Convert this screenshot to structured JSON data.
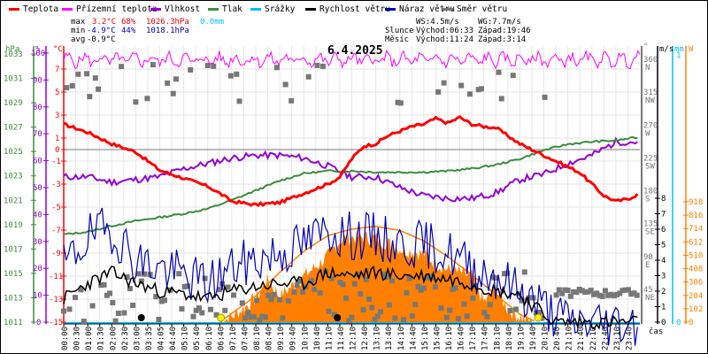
{
  "legend": [
    {
      "label": "Teplota",
      "color": "#ff0000"
    },
    {
      "label": "Přízemní teplota",
      "color": "#ff00ff"
    },
    {
      "label": "Vlhkost",
      "color": "#9400d3"
    },
    {
      "label": "Tlak",
      "color": "#3c8c3c"
    },
    {
      "label": "Srážky",
      "color": "#00bfff"
    },
    {
      "label": "Rychlost větru",
      "color": "#000000"
    },
    {
      "label": "Náraz větru",
      "color": "#0000b4"
    },
    {
      "label": "Směr větru",
      "color": "#777777"
    }
  ],
  "stats": {
    "max_label": "max",
    "max_temp": "3.2°C",
    "max_hum": "68%",
    "max_press": "1026.3hPa",
    "max_rain": "0.0mm",
    "min_label": "min",
    "min_temp": "-4.9°C",
    "min_hum": "44%",
    "min_press": "1018.1hPa",
    "avg_label": "avg",
    "avg_temp": "-0.9°C"
  },
  "wind_info": {
    "ws": "WS:4.5m/s",
    "wg": "WG:7.7m/s",
    "sun_label": "Slunce",
    "sunrise": "Východ:06:33",
    "sunset": "Západ:19:46",
    "moon_label": "Měsíc",
    "moonrise": "Východ:11:24",
    "moonset": "Západ:3:14"
  },
  "chart_data": {
    "type": "line",
    "title": "6.4.2025",
    "xlabel": "čas",
    "x_ticks": [
      "00:00",
      "00:30",
      "01:00",
      "01:30",
      "02:00",
      "02:30",
      "03:00",
      "03:35",
      "04:05",
      "04:40",
      "05:10",
      "05:40",
      "06:10",
      "06:40",
      "07:10",
      "07:40",
      "08:10",
      "08:40",
      "09:10",
      "09:40",
      "10:10",
      "10:40",
      "11:10",
      "11:40",
      "12:10",
      "12:40",
      "13:10",
      "13:40",
      "14:10",
      "14:40",
      "15:10",
      "15:40",
      "16:10",
      "16:40",
      "17:10",
      "17:40",
      "18:10",
      "18:40",
      "19:10",
      "19:40",
      "20:10",
      "20:40",
      "21:10",
      "21:40",
      "22:10",
      "22:40",
      "23:10",
      "23:40"
    ],
    "axes": {
      "pressure": {
        "unit": "hPa",
        "range": [
          1011,
          1033
        ],
        "ticks": [
          "1033",
          "1031",
          "1029",
          "1027",
          "1025",
          "1023",
          "1021",
          "1019",
          "1017",
          "1015",
          "1013",
          "1011"
        ]
      },
      "humidity": {
        "unit": "%",
        "range": [
          0,
          100
        ],
        "ticks": [
          "100",
          "90",
          "80",
          "70",
          "60",
          "50",
          "40",
          "30",
          "20",
          "10",
          "0"
        ]
      },
      "temperature": {
        "unit": "°C",
        "range": [
          -15,
          9
        ],
        "ticks": [
          "7",
          "5",
          "3",
          "1",
          "0",
          "-1",
          "-3",
          "-5",
          "-7",
          "-9",
          "-11",
          "-13",
          "-15"
        ]
      },
      "direction": {
        "unit": "°",
        "range": [
          0,
          360
        ],
        "ticks": [
          {
            "v": "360",
            "d": "N"
          },
          {
            "v": "315",
            "d": "NW"
          },
          {
            "v": "270",
            "d": "W"
          },
          {
            "v": "225",
            "d": "SW"
          },
          {
            "v": "180",
            "d": "S"
          },
          {
            "v": "135",
            "d": "SE"
          },
          {
            "v": "90",
            "d": "E"
          },
          {
            "v": "45",
            "d": "NE"
          }
        ]
      },
      "wind": {
        "unit": "m/s",
        "range": [
          0,
          8
        ],
        "ticks": [
          "8",
          "7",
          "6",
          "5",
          "4",
          "3",
          "2",
          "1",
          "0"
        ]
      },
      "rain": {
        "unit": "mm",
        "ticks": [
          "1",
          "0"
        ]
      },
      "solar": {
        "unit": "W",
        "range": [
          0,
          918
        ],
        "ticks": [
          "918",
          "816",
          "714",
          "612",
          "510",
          "408",
          "306",
          "204",
          "102",
          "0"
        ]
      }
    },
    "series": [
      {
        "name": "Teplota",
        "axis": "temperature",
        "hours": [
          0,
          1,
          2,
          3,
          4,
          5,
          6,
          6.5,
          7,
          8,
          9,
          10,
          10.5,
          11,
          11.5,
          12,
          12.5,
          13,
          13.5,
          14,
          14.5,
          15,
          15.5,
          16,
          16.5,
          17,
          17.5,
          18,
          18.5,
          19,
          19.5,
          20,
          20.5,
          21,
          21.5,
          22,
          22.5,
          23,
          23.5,
          24
        ],
        "values": [
          2.2,
          1.5,
          0.5,
          -0.2,
          -1.8,
          -2.5,
          -3.2,
          -3.8,
          -4.5,
          -4.8,
          -4.6,
          -3.8,
          -3.4,
          -3.0,
          -2.4,
          -0.8,
          0.3,
          0.5,
          1.2,
          1.6,
          2.0,
          2.2,
          2.7,
          2.3,
          2.8,
          2.2,
          2.0,
          1.9,
          1.2,
          0.5,
          0,
          -0.5,
          -1.0,
          -1.5,
          -2.0,
          -3.0,
          -4.0,
          -4.5,
          -4.3,
          -3.8
        ]
      },
      {
        "name": "Přízemní teplota",
        "axis": "temperature",
        "approx_constant": 7.8,
        "range": [
          7.2,
          8.4
        ]
      },
      {
        "name": "Vlhkost",
        "axis": "humidity",
        "hours": [
          0,
          1,
          2,
          3,
          4,
          5,
          6,
          7,
          8,
          9,
          10,
          11,
          12,
          13,
          14,
          15,
          16,
          17,
          18,
          19,
          20,
          21,
          22,
          23,
          24
        ],
        "values": [
          54,
          54,
          52,
          53,
          54,
          57,
          59,
          61,
          62,
          62,
          61,
          58,
          54,
          54,
          50,
          47,
          46,
          46,
          48,
          53,
          55,
          59,
          62,
          67,
          67
        ]
      },
      {
        "name": "Tlak",
        "axis": "pressure",
        "hours": [
          0,
          1,
          2,
          3,
          4,
          5,
          6,
          7,
          8,
          9,
          10,
          11,
          12,
          13,
          14,
          15,
          16,
          17,
          18,
          19,
          20,
          21,
          22,
          23,
          24
        ],
        "values": [
          1018.2,
          1018.4,
          1018.9,
          1019.3,
          1019.6,
          1019.9,
          1020.3,
          1021.0,
          1021.8,
          1022.6,
          1023.2,
          1023.4,
          1023.4,
          1023.3,
          1023.3,
          1023.3,
          1023.4,
          1023.6,
          1023.9,
          1024.4,
          1025.1,
          1025.6,
          1025.8,
          1025.9,
          1026.2
        ]
      },
      {
        "name": "Srážky",
        "axis": "rain",
        "total_mm": 0.0
      },
      {
        "name": "Rychlost větru",
        "axis": "wind",
        "hours": [
          0,
          1,
          2,
          3,
          4,
          5,
          6,
          7,
          8,
          9,
          10,
          11,
          12,
          13,
          14,
          15,
          16,
          17,
          18,
          19,
          20,
          20.5,
          21,
          24
        ],
        "values": [
          1.5,
          2.5,
          3.2,
          2.5,
          2.0,
          1.8,
          1.5,
          2.0,
          2.3,
          2.5,
          2.5,
          3.2,
          3.0,
          3.2,
          3.0,
          3.0,
          2.8,
          2.5,
          2.0,
          1.8,
          0.5,
          0,
          0,
          0
        ]
      },
      {
        "name": "Náraz větru",
        "axis": "wind",
        "hours": [
          0,
          1,
          2,
          3,
          4,
          5,
          6,
          7,
          8,
          9,
          10,
          11,
          12,
          13,
          14,
          15,
          16,
          17,
          18,
          19,
          20,
          20.5,
          21,
          24
        ],
        "values": [
          3.5,
          5.5,
          6.0,
          4.0,
          3.5,
          3.0,
          2.5,
          3.5,
          4.0,
          4.5,
          5.0,
          6.0,
          5.5,
          5.5,
          5.0,
          5.0,
          4.5,
          3.5,
          3.0,
          2.0,
          1.0,
          0.5,
          0,
          0
        ]
      },
      {
        "name": "Směr větru",
        "axis": "direction",
        "note": "scattered; mostly 20-70° overnight/day, 300-360° mid-day, ~40° after 20:30"
      },
      {
        "name": "Solar",
        "axis": "solar",
        "hours": [
          6.5,
          7,
          8,
          8.5,
          9,
          10,
          11,
          11.5,
          12,
          13,
          14,
          15,
          15.5,
          16,
          17,
          17.5,
          18,
          18.5,
          19,
          19.5
        ],
        "values": [
          0,
          40,
          180,
          320,
          200,
          350,
          500,
          620,
          650,
          640,
          560,
          520,
          450,
          400,
          350,
          150,
          250,
          100,
          40,
          0
        ]
      },
      {
        "name": "Theoretical solar",
        "axis": "solar",
        "hours": [
          6.5,
          8,
          9,
          10,
          11,
          12,
          13,
          14,
          15,
          16,
          17,
          18,
          19,
          19.7
        ],
        "values": [
          0,
          200,
          380,
          540,
          660,
          710,
          730,
          700,
          620,
          500,
          360,
          210,
          60,
          0
        ]
      }
    ],
    "markers": [
      {
        "type": "moonset",
        "time": "03:14"
      },
      {
        "type": "sunrise",
        "time": "06:33"
      },
      {
        "type": "moonrise",
        "time": "11:24"
      },
      {
        "type": "sunset",
        "time": "19:46"
      }
    ],
    "grid": true,
    "legend_position": "top"
  }
}
